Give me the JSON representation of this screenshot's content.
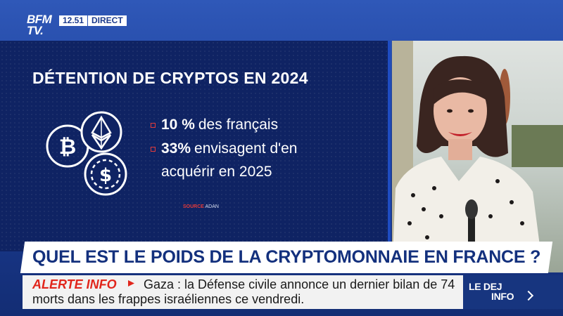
{
  "channel": {
    "logo_line1": "BFM",
    "logo_line2": "TV.",
    "time": "12.51",
    "live_label": "DIRECT"
  },
  "infographic": {
    "title": "DÉTENTION DE CRYPTOS EN 2024",
    "icons": [
      "bitcoin-icon",
      "ethereum-icon",
      "dollar-coin-icon"
    ],
    "bullets": [
      {
        "value": "10 %",
        "text": "des français"
      },
      {
        "value": "33%",
        "text": "envisagent d'en",
        "text_cont": "acquérir en 2025"
      }
    ],
    "source_label": "SOURCE",
    "source_value": "ADAN",
    "accent": "#e23a3a"
  },
  "headline": "QUEL EST LE POIDS DE LA CRYPTOMONNAIE EN FRANCE ?",
  "ticker": {
    "label": "ALERTE INFO",
    "line1": "Gaza : la Défense civile annonce un dernier bilan de 74",
    "line2": "morts dans les frappes israéliennes ce vendredi."
  },
  "program": {
    "logo_line1": "LE DEJ",
    "logo_line2": "INFO"
  },
  "colors": {
    "brand_blue": "#1b3a8c",
    "alert_red": "#e1261c",
    "headline_text": "#13307d"
  }
}
